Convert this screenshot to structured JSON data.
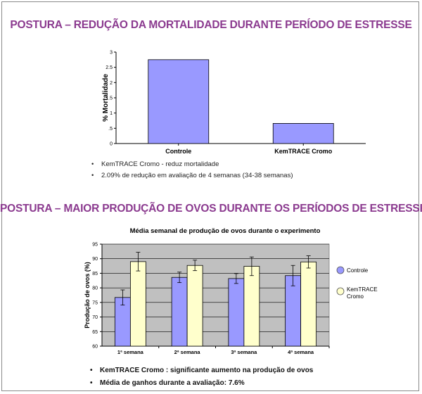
{
  "title1": "POSTURA – REDUÇÃO DA MORTALIDADE DURANTE PERÍODO DE ESTRESSE",
  "title2": "POSTURA – MAIOR PRODUÇÃO DE OVOS DURANTE OS PERÍODOS DE ESTRESSE",
  "bullets1": [
    "KemTRACE Cromo - reduz mortalidade",
    "2.09% de redução em avaliação de 4 semanas (34-38 semanas)"
  ],
  "bullets2": [
    "KemTRACE Cromo : significante aumento na produção de ovos",
    "Média de ganhos durante a avaliação: 7.6%"
  ],
  "colors": {
    "heading": "#8b3a8f",
    "controle": "#9999ff",
    "kemtrace": "#ffffcc",
    "plot_area": "#c0c0c0"
  },
  "chart_data": [
    {
      "type": "bar",
      "title": "",
      "xlabel": "",
      "ylabel": "% Mortalidade",
      "categories": [
        "Controle",
        "KemTRACE Cromo"
      ],
      "values": [
        2.75,
        0.66
      ],
      "ylim": [
        0,
        3
      ],
      "yticks": [
        "0",
        ".5",
        "1",
        "1.5",
        "2",
        "2.5",
        "3"
      ],
      "grid": false,
      "legend": "none"
    },
    {
      "type": "bar",
      "title": "Média semanal de produção de ovos durante o experimento",
      "xlabel": "",
      "ylabel": "Produção de ovos (%)",
      "categories": [
        "1ª semana",
        "2ª semana",
        "3ª semana",
        "4ª semana"
      ],
      "ylim": [
        60,
        95
      ],
      "yticks": [
        "60",
        "65",
        "70",
        "75",
        "80",
        "85",
        "90",
        "95"
      ],
      "series": [
        {
          "name": "Controle",
          "values": [
            76.7,
            83.6,
            83.2,
            84.2
          ],
          "errors": [
            2.6,
            1.8,
            1.7,
            3.5
          ]
        },
        {
          "name": "KemTRACE Cromo",
          "values": [
            89.0,
            87.7,
            87.4,
            88.9
          ],
          "errors": [
            3.2,
            1.8,
            3.2,
            2.1
          ]
        }
      ],
      "grid": true,
      "legend": "right"
    }
  ]
}
